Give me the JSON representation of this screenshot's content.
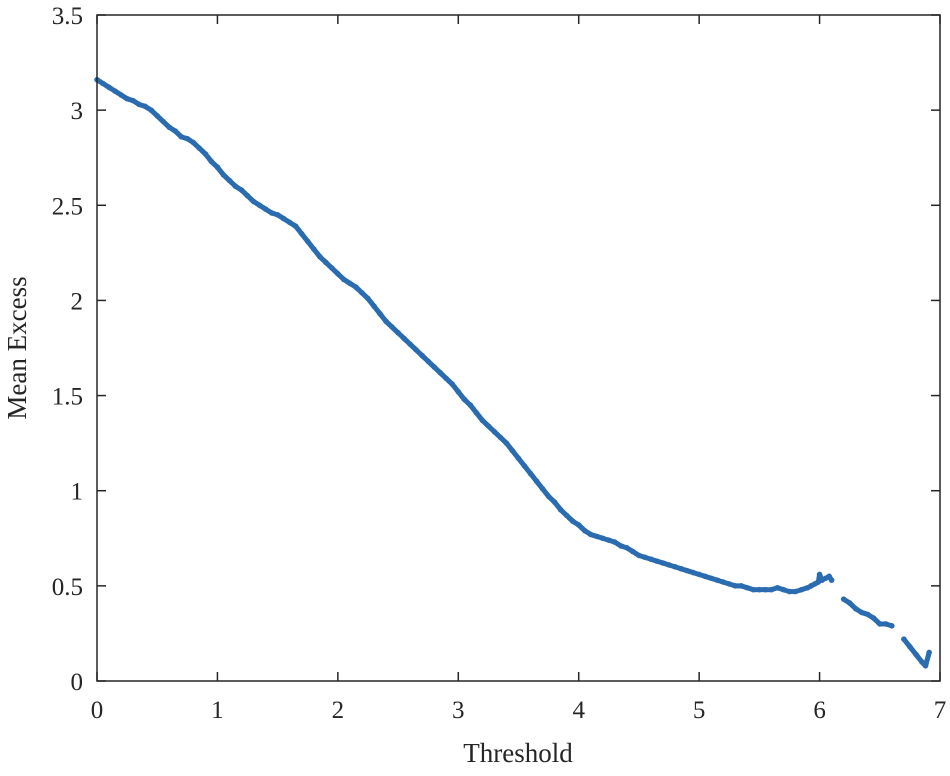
{
  "chart_data": {
    "type": "scatter",
    "title": "",
    "xlabel": "Threshold",
    "ylabel": "Mean Excess",
    "xlim": [
      0,
      7
    ],
    "ylim": [
      0,
      3.5
    ],
    "xticks": [
      0,
      1,
      2,
      3,
      4,
      5,
      6,
      7
    ],
    "xtick_labels": [
      "0",
      "1",
      "2",
      "3",
      "4",
      "5",
      "6",
      "7"
    ],
    "yticks": [
      0,
      0.5,
      1,
      1.5,
      2,
      2.5,
      3,
      3.5
    ],
    "ytick_labels": [
      "0",
      "0.5",
      "1",
      "1.5",
      "2",
      "2.5",
      "3",
      "3.5"
    ],
    "grid": false,
    "box": true,
    "marker_color": "#2b6cb0",
    "series": [
      {
        "x": [
          0.0,
          0.05,
          0.1,
          0.15,
          0.2,
          0.25,
          0.3,
          0.35,
          0.4,
          0.45,
          0.5,
          0.55,
          0.6,
          0.65,
          0.7,
          0.75,
          0.8,
          0.85,
          0.9,
          0.95,
          1.0,
          1.05,
          1.1,
          1.15,
          1.2,
          1.25,
          1.3,
          1.35,
          1.4,
          1.45,
          1.5,
          1.55,
          1.6,
          1.65,
          1.7,
          1.75,
          1.8,
          1.85,
          1.9,
          1.95,
          2.0,
          2.05,
          2.1,
          2.15,
          2.2,
          2.25,
          2.3,
          2.35,
          2.4,
          2.45,
          2.5,
          2.55,
          2.6,
          2.65,
          2.7,
          2.75,
          2.8,
          2.85,
          2.9,
          2.95,
          3.0,
          3.05,
          3.1,
          3.15,
          3.2,
          3.25,
          3.3,
          3.35,
          3.4,
          3.45,
          3.5,
          3.55,
          3.6,
          3.65,
          3.7,
          3.75,
          3.8,
          3.85,
          3.9,
          3.95,
          4.0,
          4.05,
          4.1,
          4.15,
          4.2,
          4.25,
          4.3,
          4.35,
          4.4,
          4.45,
          4.5,
          4.55,
          4.6,
          4.65,
          4.7,
          4.75,
          4.8,
          4.85,
          4.9,
          4.95,
          5.0,
          5.05,
          5.1,
          5.15,
          5.2,
          5.25,
          5.3,
          5.35,
          5.4,
          5.45,
          5.5,
          5.55,
          5.6,
          5.65,
          5.7,
          5.75,
          5.8,
          5.85,
          5.9,
          5.93,
          5.96,
          5.99,
          6.0,
          6.02,
          6.05,
          6.08,
          6.1,
          6.2,
          6.25,
          6.3,
          6.35,
          6.4,
          6.45,
          6.5,
          6.55,
          6.6,
          6.7,
          6.75,
          6.8,
          6.85,
          6.88,
          6.91
        ],
        "y": [
          3.16,
          3.14,
          3.12,
          3.1,
          3.08,
          3.06,
          3.05,
          3.03,
          3.02,
          3.0,
          2.97,
          2.94,
          2.91,
          2.89,
          2.86,
          2.85,
          2.83,
          2.8,
          2.77,
          2.73,
          2.7,
          2.66,
          2.63,
          2.6,
          2.58,
          2.55,
          2.52,
          2.5,
          2.48,
          2.46,
          2.45,
          2.43,
          2.41,
          2.39,
          2.35,
          2.31,
          2.27,
          2.23,
          2.2,
          2.17,
          2.14,
          2.11,
          2.09,
          2.07,
          2.04,
          2.01,
          1.97,
          1.93,
          1.89,
          1.86,
          1.83,
          1.8,
          1.77,
          1.74,
          1.71,
          1.68,
          1.65,
          1.62,
          1.59,
          1.56,
          1.52,
          1.48,
          1.45,
          1.41,
          1.37,
          1.34,
          1.31,
          1.28,
          1.25,
          1.21,
          1.17,
          1.13,
          1.09,
          1.05,
          1.01,
          0.97,
          0.94,
          0.9,
          0.87,
          0.84,
          0.82,
          0.79,
          0.77,
          0.76,
          0.75,
          0.74,
          0.73,
          0.71,
          0.7,
          0.68,
          0.66,
          0.65,
          0.64,
          0.63,
          0.62,
          0.61,
          0.6,
          0.59,
          0.58,
          0.57,
          0.56,
          0.55,
          0.54,
          0.53,
          0.52,
          0.51,
          0.5,
          0.5,
          0.49,
          0.48,
          0.48,
          0.48,
          0.48,
          0.49,
          0.48,
          0.47,
          0.47,
          0.48,
          0.49,
          0.5,
          0.51,
          0.52,
          0.56,
          0.53,
          0.54,
          0.55,
          0.53,
          0.43,
          0.41,
          0.38,
          0.36,
          0.35,
          0.33,
          0.3,
          0.3,
          0.29,
          0.22,
          0.18,
          0.14,
          0.1,
          0.08,
          0.15
        ]
      }
    ]
  }
}
